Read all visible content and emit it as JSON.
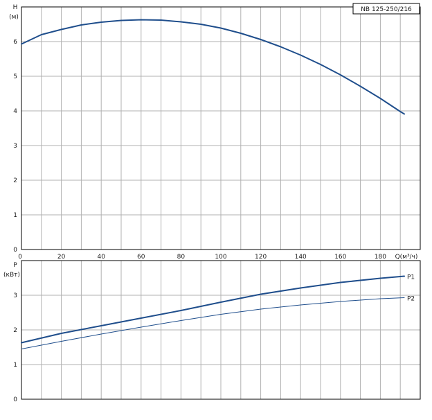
{
  "chart_data": [
    {
      "type": "line",
      "ylabel": "H",
      "yunit": "(м)",
      "xlabel": "Q(м³/ч)",
      "model_label": "NB 125-250/216",
      "xlim": [
        0,
        200
      ],
      "ylim": [
        0,
        7
      ],
      "xticks": [
        "0",
        "20",
        "40",
        "60",
        "80",
        "100",
        "120",
        "140",
        "160",
        "180"
      ],
      "yticks": [
        "0",
        "1",
        "2",
        "3",
        "4",
        "5",
        "6"
      ],
      "grid": true,
      "series": [
        {
          "color": "#1f4e8c",
          "x": [
            0,
            10,
            20,
            30,
            40,
            50,
            60,
            70,
            80,
            90,
            100,
            110,
            120,
            130,
            140,
            150,
            160,
            170,
            180,
            190,
            192
          ],
          "y": [
            5.93,
            6.2,
            6.35,
            6.48,
            6.56,
            6.61,
            6.63,
            6.62,
            6.57,
            6.5,
            6.39,
            6.24,
            6.06,
            5.85,
            5.61,
            5.34,
            5.04,
            4.71,
            4.36,
            3.98,
            3.91
          ]
        }
      ]
    },
    {
      "type": "line",
      "ylabel": "P",
      "yunit": "(кВт)",
      "xlim": [
        0,
        200
      ],
      "ylim": [
        0,
        4
      ],
      "yticks": [
        "0",
        "1",
        "2",
        "3"
      ],
      "grid": true,
      "series": [
        {
          "name": "P1",
          "color": "#1f4e8c",
          "x": [
            0,
            20,
            40,
            60,
            80,
            100,
            120,
            140,
            160,
            180,
            192
          ],
          "y": [
            1.63,
            1.9,
            2.12,
            2.34,
            2.56,
            2.8,
            3.03,
            3.21,
            3.37,
            3.49,
            3.55
          ]
        },
        {
          "name": "P2",
          "color": "#1f4e8c",
          "x": [
            0,
            20,
            40,
            60,
            80,
            100,
            120,
            140,
            160,
            180,
            192
          ],
          "y": [
            1.45,
            1.67,
            1.88,
            2.08,
            2.27,
            2.45,
            2.6,
            2.72,
            2.82,
            2.9,
            2.93
          ]
        }
      ]
    }
  ]
}
